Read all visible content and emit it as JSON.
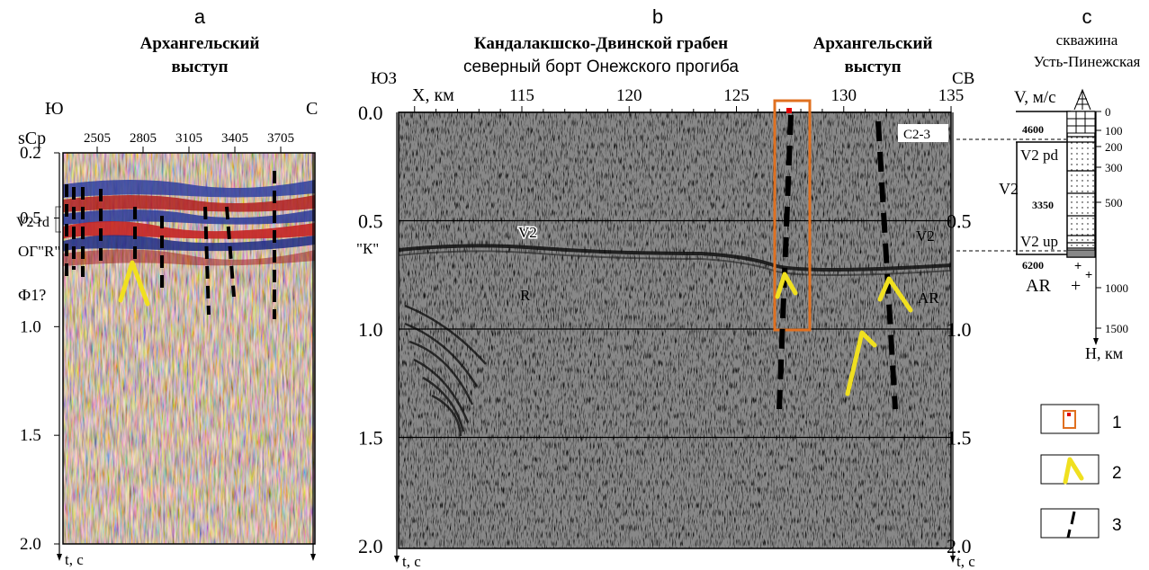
{
  "panel_a": {
    "letter": "a",
    "title_line1": "Архангельский",
    "title_line2": "выступ",
    "dir_left": "Ю",
    "dir_right": "С",
    "scp_label": "sCp",
    "cdp_ticks": [
      "2505",
      "2805",
      "3105",
      "3405",
      "3705"
    ],
    "time_ticks": [
      "0.2",
      "0.5",
      "1.0",
      "1.5",
      "2.0"
    ],
    "horizon_v2rd": "V2 rd",
    "horizon_og_r": "ОГ\"R\"",
    "horizon_phi": "Ф1?",
    "axis_label": "t, с"
  },
  "panel_b": {
    "letter": "b",
    "title_left_line1": "Кандалакшско-Двинской грабен",
    "title_left_line2": "северный борт Онежского прогиба",
    "title_right_line1": "Архангельский",
    "title_right_line2": "выступ",
    "dir_left": "ЮЗ",
    "dir_right": "СВ",
    "x_axis_label": "X, км",
    "x_ticks": [
      "115",
      "120",
      "125",
      "130",
      "135"
    ],
    "time_ticks_left": [
      "0.0",
      "0.5",
      "1.0",
      "1.5",
      "2.0"
    ],
    "time_ticks_right": [
      "0.5",
      "1.0",
      "1.5",
      "2.0"
    ],
    "label_k": "\"К\"",
    "label_v2": "V2",
    "label_v2_right": "V2",
    "label_r": "R",
    "label_ar": "AR",
    "label_c23": "C2-3",
    "axis_label": "t, с"
  },
  "panel_c": {
    "letter": "c",
    "title_line1": "скважина",
    "title_line2": "Усть-Пинежская",
    "v_label": "V, м/с",
    "depth_ticks": [
      "0",
      "100",
      "200",
      "300",
      "500",
      "1000",
      "1500"
    ],
    "velocities": [
      "4600",
      "3350",
      "6200"
    ],
    "layer_v2pd": "V2 pd",
    "layer_v2up": "V2 up",
    "layer_v2": "V2",
    "layer_ar": "AR",
    "depth_label": "H, км"
  },
  "legend": {
    "items": [
      {
        "number": "1",
        "icon": "orange-frame-icon"
      },
      {
        "number": "2",
        "icon": "yellow-chevron-icon"
      },
      {
        "number": "3",
        "icon": "dashed-fault-icon"
      }
    ]
  },
  "colors": {
    "frame": "#e07020",
    "chevron": "#f0e020",
    "fault": "#000000",
    "red_marker": "#e00000"
  }
}
